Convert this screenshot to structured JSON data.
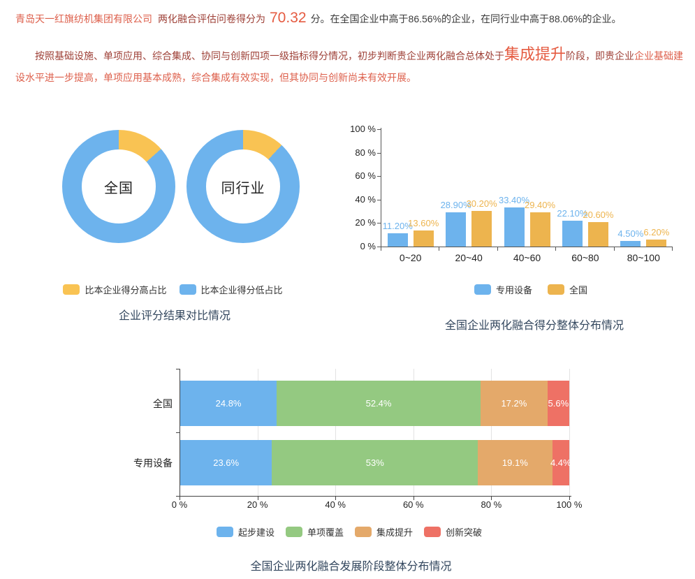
{
  "summary": {
    "company": "青岛天一红旗纺机集团有限公司",
    "lead": "两化融合评估问卷得分为",
    "score": "70.32",
    "tail": "分。在全国企业中高于86.56%的企业，在同行业中高于88.06%的企业。"
  },
  "stage": {
    "lead": "按照基础设施、单项应用、综合集成、协同与创新四项一级指标得分情况，初步判断贵企业两化融合总体处于",
    "stage": "集成提升",
    "mid": "阶段，即贵企业",
    "highlight1": "企业基础建设",
    "highlight2": "水平进一步提高，单项应用基本成熟，综合集成有效实现，但其协同与创新尚未有效开展。"
  },
  "text_colors": {
    "company": "#dd5f4b",
    "body_dark_red": "#9e4037",
    "highlight_orange": "#e55b41",
    "neutral_dark": "#3a3a3a",
    "chart_title": "#33475e"
  },
  "chart_data": [
    {
      "type": "pie",
      "subtype": "donut-comparison",
      "title": "企业评分结果对比情况",
      "legend": [
        {
          "label": "比本企业得分高占比",
          "color": "#f9c353"
        },
        {
          "label": "比本企业得分低占比",
          "color": "#6db3ed"
        }
      ],
      "donuts": [
        {
          "label": "全国",
          "high": 13.44,
          "low": 86.56
        },
        {
          "label": "同行业",
          "high": 11.94,
          "low": 88.06
        }
      ]
    },
    {
      "type": "bar",
      "title": "全国企业两化融合得分整体分布情况",
      "categories": [
        "0~20",
        "20~40",
        "40~60",
        "60~80",
        "80~100"
      ],
      "series": [
        {
          "name": "专用设备",
          "color": "#6db3ed",
          "values": [
            11.2,
            28.9,
            33.4,
            22.1,
            4.5
          ],
          "labels": [
            "11.20%",
            "28.90%",
            "33.40%",
            "22.10%",
            "4.50%"
          ]
        },
        {
          "name": "全国",
          "color": "#edb44e",
          "values": [
            13.6,
            30.2,
            29.4,
            20.6,
            6.2
          ],
          "labels": [
            "13.60%",
            "30.20%",
            "29.40%",
            "20.60%",
            "6.20%"
          ]
        }
      ],
      "ylim": [
        0,
        100
      ],
      "yticks": [
        "0 %",
        "20 %",
        "40 %",
        "60 %",
        "80 %",
        "100 %"
      ],
      "grid": false,
      "legend_position": "bottom"
    },
    {
      "type": "bar",
      "subtype": "horizontal-stacked",
      "title": "全国企业两化融合发展阶段整体分布情况",
      "categories": [
        "全国",
        "专用设备"
      ],
      "series": [
        {
          "name": "起步建设",
          "color": "#6db3ed",
          "values": [
            24.8,
            23.6
          ],
          "labels": [
            "24.8%",
            "23.6%"
          ]
        },
        {
          "name": "单项覆盖",
          "color": "#94c981",
          "values": [
            52.4,
            53
          ],
          "labels": [
            "52.4%",
            "53%"
          ]
        },
        {
          "name": "集成提升",
          "color": "#e4a96a",
          "values": [
            17.2,
            19.1
          ],
          "labels": [
            "17.2%",
            "19.1%"
          ]
        },
        {
          "name": "创新突破",
          "color": "#ee7165",
          "values": [
            5.6,
            4.4
          ],
          "labels": [
            "5.6%",
            "4.4%"
          ]
        }
      ],
      "xlim": [
        0,
        100
      ],
      "xticks": [
        "0 %",
        "20 %",
        "40 %",
        "60 %",
        "80 %",
        "100 %"
      ],
      "grid": true,
      "legend_position": "bottom"
    }
  ]
}
